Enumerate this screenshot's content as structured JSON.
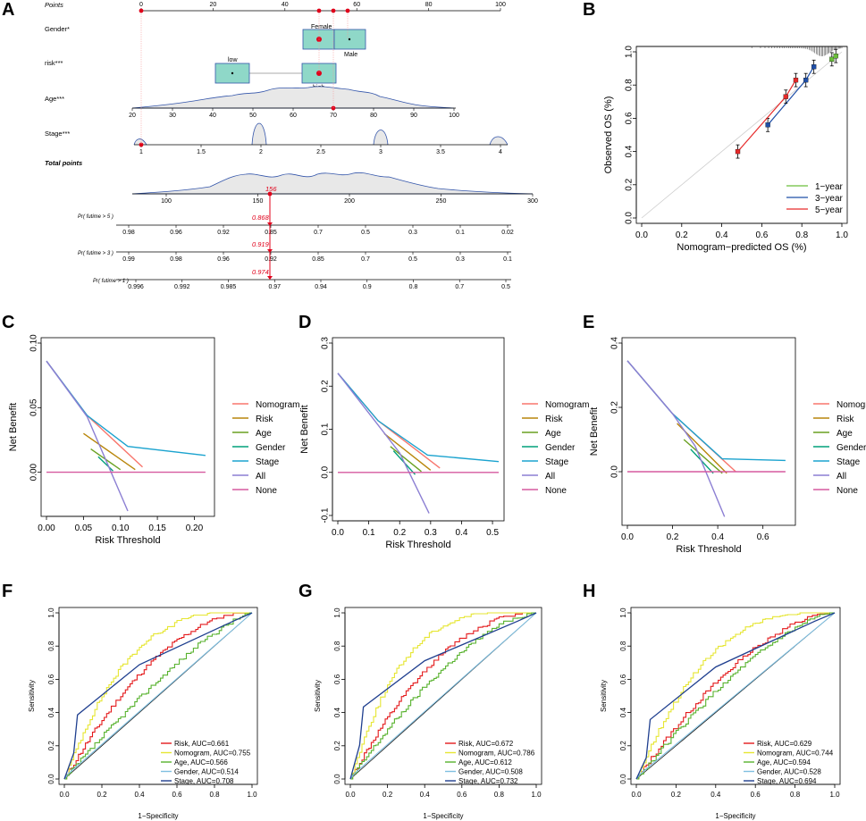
{
  "colors": {
    "nomogram": "#f8766d",
    "risk": "#b8860b",
    "age": "#6aa121",
    "gender": "#00a07a",
    "stage": "#1ba3cf",
    "all": "#8c7fd3",
    "none": "#d65a9f",
    "cal1": "#6bbf3b",
    "cal3": "#1f4fa8",
    "cal5": "#e62a2a",
    "rocRisk": "#e41a1c",
    "rocNomo": "#e6e632",
    "rocAge": "#58b22e",
    "rocGender": "#7fbfe0",
    "rocStage": "#1f3f8f",
    "red": "#e0001a",
    "box": "#8fd8c8"
  },
  "panels": {
    "A": "A",
    "B": "B",
    "C": "C",
    "D": "D",
    "E": "E",
    "F": "F",
    "G": "G",
    "H": "H"
  },
  "nomogram": {
    "points_label": "Points",
    "points_ticks": [
      "0",
      "20",
      "40",
      "60",
      "80",
      "100"
    ],
    "gender_label": "Gender*",
    "gender_female": "Female",
    "gender_male": "Male",
    "risk_label": "risk***",
    "risk_low": "low",
    "risk_high": "high",
    "age_label": "Age***",
    "age_ticks": [
      "20",
      "30",
      "40",
      "50",
      "60",
      "70",
      "80",
      "90",
      "100"
    ],
    "stage_label": "Stage***",
    "stage_ticks": [
      "1",
      "1.5",
      "2",
      "2.5",
      "3",
      "3.5",
      "4"
    ],
    "total_label": "Total points",
    "total_ticks": [
      "100",
      "150",
      "200",
      "250",
      "300"
    ],
    "total_value": "156",
    "p5_label": "Pr( futime > 5 )",
    "p5_ticks": [
      "0.98",
      "0.96",
      "0.92",
      "0.85",
      "0.7",
      "0.5",
      "0.3",
      "0.1",
      "0.02"
    ],
    "p5_value": "0.868",
    "p3_label": "Pr( futime > 3 )",
    "p3_ticks": [
      "0.99",
      "0.98",
      "0.96",
      "0.92",
      "0.85",
      "0.7",
      "0.5",
      "0.3",
      "0.1"
    ],
    "p3_value": "0.919",
    "p1_label": "Pr( futime > 1 )",
    "p1_ticks": [
      "0.996",
      "0.992",
      "0.985",
      "0.97",
      "0.94",
      "0.9",
      "0.8",
      "0.7",
      "0.5"
    ],
    "p1_value": "0.974"
  },
  "chart_data": [
    {
      "id": "B",
      "type": "line",
      "title": "",
      "xlabel": "Nomogram−predicted OS (%)",
      "ylabel": "Observed OS (%)",
      "xlim": [
        0,
        1
      ],
      "ylim": [
        0,
        1
      ],
      "xticks": [
        "0.0",
        "0.2",
        "0.4",
        "0.6",
        "0.8",
        "1.0"
      ],
      "yticks": [
        "0.0",
        "0.2",
        "0.4",
        "0.6",
        "0.8",
        "1.0"
      ],
      "series": [
        {
          "name": "1−year",
          "x": [
            0.95,
            0.97
          ],
          "y": [
            0.955,
            0.975
          ]
        },
        {
          "name": "3−year",
          "x": [
            0.63,
            0.82,
            0.86
          ],
          "y": [
            0.56,
            0.83,
            0.91
          ]
        },
        {
          "name": "5−year",
          "x": [
            0.48,
            0.72,
            0.77
          ],
          "y": [
            0.4,
            0.73,
            0.83
          ]
        }
      ]
    },
    {
      "id": "C",
      "type": "line",
      "xlabel": "Risk Threshold",
      "ylabel": "Net Benefit",
      "xlim": [
        0,
        0.22
      ],
      "ylim": [
        -0.03,
        0.1
      ],
      "xticks": [
        "0.00",
        "0.05",
        "0.10",
        "0.15",
        "0.20"
      ],
      "yticks": [
        "0.00",
        "0.05",
        "0.10"
      ],
      "legend": [
        "Nomogram",
        "Risk",
        "Age",
        "Gender",
        "Stage",
        "All",
        "None"
      ],
      "series": [
        {
          "name": "Nomogram",
          "x": [
            0,
            0.055,
            0.13
          ],
          "y": [
            0.086,
            0.044,
            0.004
          ]
        },
        {
          "name": "Risk",
          "x": [
            0.05,
            0.12
          ],
          "y": [
            0.03,
            0.002
          ]
        },
        {
          "name": "Age",
          "x": [
            0.06,
            0.1
          ],
          "y": [
            0.018,
            0.002
          ]
        },
        {
          "name": "Gender",
          "x": [
            0.07,
            0.09
          ],
          "y": [
            0.012,
            0.001
          ]
        },
        {
          "name": "Stage",
          "x": [
            0,
            0.055,
            0.11,
            0.215
          ],
          "y": [
            0.086,
            0.044,
            0.02,
            0.013
          ]
        },
        {
          "name": "All",
          "x": [
            0,
            0.055,
            0.11
          ],
          "y": [
            0.086,
            0.043,
            -0.03
          ]
        },
        {
          "name": "None",
          "x": [
            0,
            0.215
          ],
          "y": [
            0,
            0
          ]
        }
      ]
    },
    {
      "id": "D",
      "type": "line",
      "xlabel": "Risk Threshold",
      "ylabel": "Net Benefit",
      "xlim": [
        0,
        0.52
      ],
      "ylim": [
        -0.1,
        0.3
      ],
      "xticks": [
        "0.0",
        "0.1",
        "0.2",
        "0.3",
        "0.4",
        "0.5"
      ],
      "yticks": [
        "-0.1",
        "0.0",
        "0.1",
        "0.2",
        "0.3"
      ],
      "legend": [
        "Nomogram",
        "Risk",
        "Age",
        "Gender",
        "Stage",
        "All",
        "None"
      ],
      "series": [
        {
          "name": "Nomogram",
          "x": [
            0,
            0.13,
            0.33
          ],
          "y": [
            0.23,
            0.12,
            0.01
          ]
        },
        {
          "name": "Risk",
          "x": [
            0.15,
            0.3
          ],
          "y": [
            0.09,
            0.005
          ]
        },
        {
          "name": "Age",
          "x": [
            0.17,
            0.27
          ],
          "y": [
            0.06,
            0.002
          ]
        },
        {
          "name": "Gender",
          "x": [
            0.18,
            0.25
          ],
          "y": [
            0.05,
            -0.005
          ]
        },
        {
          "name": "Stage",
          "x": [
            0,
            0.13,
            0.29,
            0.52
          ],
          "y": [
            0.23,
            0.12,
            0.04,
            0.025
          ]
        },
        {
          "name": "All",
          "x": [
            0,
            0.13,
            0.2,
            0.295
          ],
          "y": [
            0.23,
            0.11,
            0.045,
            -0.095
          ]
        },
        {
          "name": "None",
          "x": [
            0,
            0.52
          ],
          "y": [
            0,
            0
          ]
        }
      ]
    },
    {
      "id": "E",
      "type": "line",
      "xlabel": "Risk Threshold",
      "ylabel": "Net Benefit",
      "xlim": [
        0,
        0.72
      ],
      "ylim": [
        -0.15,
        0.4
      ],
      "xticks": [
        "0.0",
        "0.2",
        "0.4",
        "0.6"
      ],
      "yticks": [
        "0.0",
        "0.2",
        "0.4"
      ],
      "legend": [
        "Nomogram",
        "Risk",
        "Age",
        "Gender",
        "Stage",
        "All",
        "None"
      ],
      "series": [
        {
          "name": "Nomogram",
          "x": [
            0,
            0.2,
            0.48
          ],
          "y": [
            0.345,
            0.18,
            0.0
          ]
        },
        {
          "name": "Risk",
          "x": [
            0.22,
            0.44
          ],
          "y": [
            0.15,
            -0.005
          ]
        },
        {
          "name": "Age",
          "x": [
            0.25,
            0.42
          ],
          "y": [
            0.1,
            -0.005
          ]
        },
        {
          "name": "Gender",
          "x": [
            0.28,
            0.38
          ],
          "y": [
            0.07,
            -0.005
          ]
        },
        {
          "name": "Stage",
          "x": [
            0,
            0.2,
            0.42,
            0.7
          ],
          "y": [
            0.345,
            0.18,
            0.04,
            0.035
          ]
        },
        {
          "name": "All",
          "x": [
            0,
            0.2,
            0.3,
            0.43
          ],
          "y": [
            0.345,
            0.18,
            0.08,
            -0.14
          ]
        },
        {
          "name": "None",
          "x": [
            0,
            0.7
          ],
          "y": [
            0,
            0
          ]
        }
      ]
    },
    {
      "id": "F",
      "type": "line",
      "xlabel": "1−Specificity",
      "ylabel": "Sensitivity",
      "xlim": [
        0,
        1
      ],
      "ylim": [
        0,
        1
      ],
      "xticks": [
        "0.0",
        "0.2",
        "0.4",
        "0.6",
        "0.8",
        "1.0"
      ],
      "yticks": [
        "0.0",
        "0.2",
        "0.4",
        "0.6",
        "0.8",
        "1.0"
      ],
      "legend": [
        "Risk, AUC=0.661",
        "Nomogram, AUC=0.755",
        "Age, AUC=0.566",
        "Gender, AUC=0.514",
        "Stage, AUC=0.708"
      ],
      "series": [
        {
          "name": "Risk",
          "auc": 0.661
        },
        {
          "name": "Nomogram",
          "auc": 0.755
        },
        {
          "name": "Age",
          "auc": 0.566
        },
        {
          "name": "Gender",
          "auc": 0.514
        },
        {
          "name": "Stage",
          "auc": 0.708
        }
      ]
    },
    {
      "id": "G",
      "type": "line",
      "xlabel": "1−Specificity",
      "ylabel": "Sensitivity",
      "xlim": [
        0,
        1
      ],
      "ylim": [
        0,
        1
      ],
      "xticks": [
        "0.0",
        "0.2",
        "0.4",
        "0.6",
        "0.8",
        "1.0"
      ],
      "yticks": [
        "0.0",
        "0.2",
        "0.4",
        "0.6",
        "0.8",
        "1.0"
      ],
      "legend": [
        "Risk, AUC=0.672",
        "Nomogram, AUC=0.786",
        "Age, AUC=0.612",
        "Gender, AUC=0.508",
        "Stage, AUC=0.732"
      ],
      "series": [
        {
          "name": "Risk",
          "auc": 0.672
        },
        {
          "name": "Nomogram",
          "auc": 0.786
        },
        {
          "name": "Age",
          "auc": 0.612
        },
        {
          "name": "Gender",
          "auc": 0.508
        },
        {
          "name": "Stage",
          "auc": 0.732
        }
      ]
    },
    {
      "id": "H",
      "type": "line",
      "xlabel": "1−Specificity",
      "ylabel": "Sensitivity",
      "xlim": [
        0,
        1
      ],
      "ylim": [
        0,
        1
      ],
      "xticks": [
        "0.0",
        "0.2",
        "0.4",
        "0.6",
        "0.8",
        "1.0"
      ],
      "yticks": [
        "0.0",
        "0.2",
        "0.4",
        "0.6",
        "0.8",
        "1.0"
      ],
      "legend": [
        "Risk, AUC=0.629",
        "Nomogram, AUC=0.744",
        "Age, AUC=0.594",
        "Gender, AUC=0.528",
        "Stage, AUC=0.694"
      ],
      "series": [
        {
          "name": "Risk",
          "auc": 0.629
        },
        {
          "name": "Nomogram",
          "auc": 0.744
        },
        {
          "name": "Age",
          "auc": 0.594
        },
        {
          "name": "Gender",
          "auc": 0.528
        },
        {
          "name": "Stage",
          "auc": 0.694
        }
      ]
    }
  ]
}
